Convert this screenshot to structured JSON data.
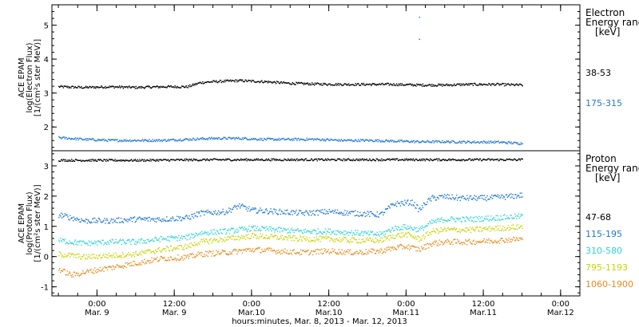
{
  "chart_data": {
    "type": "scatter",
    "xlabel": "hours:minutes, Mar. 8, 2013 - Mar. 12, 2013",
    "x_ticks": [
      {
        "time_label": "0:00",
        "date_label": "Mar. 9",
        "hours": 24
      },
      {
        "time_label": "12:00",
        "date_label": "Mar. 9",
        "hours": 36
      },
      {
        "time_label": "0:00",
        "date_label": "Mar.10",
        "hours": 48
      },
      {
        "time_label": "12:00",
        "date_label": "Mar.10",
        "hours": 60
      },
      {
        "time_label": "0:00",
        "date_label": "Mar.11",
        "hours": 72
      },
      {
        "time_label": "12:00",
        "date_label": "Mar.11",
        "hours": 84
      },
      {
        "time_label": "0:00",
        "date_label": "Mar.12",
        "hours": 96
      }
    ],
    "xlim": [
      17,
      99
    ],
    "panels": [
      {
        "id": "electron",
        "ylabel_lines": [
          "ACE EPAM",
          "log(Electron Flux)",
          "[1/(cm²s ster MeV)]"
        ],
        "ylim": [
          1.3,
          5.6
        ],
        "yticks": [
          2,
          3,
          4,
          5
        ],
        "legend_title": [
          "Electron",
          "Energy ranges",
          "[keV]"
        ],
        "series": [
          {
            "name": "38-53",
            "color": "#000000",
            "x": [
              18,
              22,
              26,
              30,
              34,
              38,
              40,
              42,
              46,
              50,
              54,
              58,
              62,
              66,
              70,
              74,
              78,
              82,
              86,
              90
            ],
            "y": [
              3.2,
              3.18,
              3.2,
              3.18,
              3.2,
              3.2,
              3.32,
              3.35,
              3.38,
              3.35,
              3.3,
              3.28,
              3.27,
              3.27,
              3.27,
              3.25,
              3.25,
              3.27,
              3.27,
              3.25
            ]
          },
          {
            "name": "175-315",
            "color": "#1f77d4",
            "x": [
              18,
              22,
              26,
              30,
              34,
              38,
              42,
              46,
              50,
              54,
              58,
              62,
              66,
              70,
              74,
              78,
              82,
              86,
              90
            ],
            "y": [
              1.7,
              1.65,
              1.62,
              1.62,
              1.62,
              1.65,
              1.68,
              1.68,
              1.65,
              1.65,
              1.65,
              1.62,
              1.62,
              1.6,
              1.58,
              1.58,
              1.57,
              1.57,
              1.53
            ]
          }
        ],
        "spikes": [
          {
            "x": 74,
            "y": 5.25,
            "color": "#1f77d4"
          },
          {
            "x": 74,
            "y": 4.6,
            "color": "#1f77d4"
          }
        ]
      },
      {
        "id": "proton",
        "ylabel_lines": [
          "ACE EPAM",
          "log(Proton Flux)",
          "[1/(cm²s ster MeV)]"
        ],
        "ylim": [
          -1.3,
          3.5
        ],
        "yticks": [
          -1,
          0,
          1,
          2,
          3
        ],
        "legend_title": [
          "Proton",
          "Energy ranges",
          "[keV]"
        ],
        "series": [
          {
            "name": "47-68",
            "color": "#000000",
            "x": [
              18,
              30,
              42,
              54,
              66,
              78,
              90
            ],
            "y": [
              3.2,
              3.2,
              3.22,
              3.22,
              3.22,
              3.22,
              3.22
            ]
          },
          {
            "name": "115-195",
            "color": "#1f77d4",
            "x": [
              18,
              22,
              26,
              30,
              34,
              38,
              40,
              44,
              46,
              48,
              52,
              56,
              60,
              64,
              68,
              70,
              72,
              73,
              74,
              75,
              76,
              78,
              80,
              84,
              88,
              90
            ],
            "y": [
              1.4,
              1.2,
              1.2,
              1.25,
              1.25,
              1.3,
              1.45,
              1.5,
              1.7,
              1.55,
              1.5,
              1.45,
              1.5,
              1.45,
              1.4,
              1.75,
              1.8,
              1.8,
              1.55,
              1.8,
              1.95,
              2.0,
              1.95,
              1.95,
              2.0,
              2.05
            ]
          },
          {
            "name": "310-580",
            "color": "#2dd4d4",
            "x": [
              18,
              22,
              26,
              30,
              34,
              38,
              40,
              44,
              48,
              52,
              56,
              60,
              64,
              68,
              70,
              72,
              74,
              76,
              78,
              82,
              86,
              90
            ],
            "y": [
              0.55,
              0.45,
              0.5,
              0.5,
              0.6,
              0.65,
              0.8,
              0.85,
              0.95,
              0.9,
              0.85,
              0.85,
              0.8,
              0.75,
              0.95,
              1.0,
              0.9,
              1.15,
              1.25,
              1.25,
              1.3,
              1.35
            ]
          },
          {
            "name": "795-1193",
            "color": "#c8d400",
            "x": [
              18,
              22,
              26,
              30,
              34,
              38,
              40,
              44,
              48,
              52,
              56,
              60,
              64,
              68,
              70,
              72,
              74,
              76,
              78,
              82,
              86,
              90
            ],
            "y": [
              0.1,
              0.0,
              0.05,
              0.1,
              0.25,
              0.35,
              0.5,
              0.6,
              0.7,
              0.65,
              0.6,
              0.6,
              0.55,
              0.55,
              0.7,
              0.75,
              0.6,
              0.85,
              0.9,
              0.9,
              0.95,
              1.0
            ]
          },
          {
            "name": "1060-1900",
            "color": "#e88a1a",
            "x": [
              18,
              20,
              22,
              26,
              30,
              34,
              38,
              40,
              44,
              48,
              52,
              56,
              60,
              64,
              68,
              70,
              72,
              74,
              76,
              78,
              82,
              86,
              90
            ],
            "y": [
              -0.4,
              -0.6,
              -0.5,
              -0.35,
              -0.2,
              -0.05,
              0.0,
              0.1,
              0.15,
              0.25,
              0.2,
              0.15,
              0.2,
              0.15,
              0.2,
              0.3,
              0.35,
              0.25,
              0.45,
              0.5,
              0.5,
              0.55,
              0.6
            ]
          }
        ]
      }
    ]
  }
}
